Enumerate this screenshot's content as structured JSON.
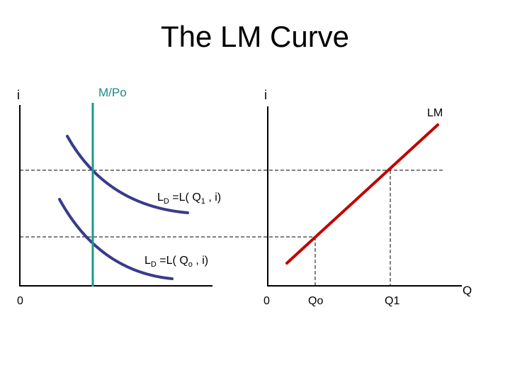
{
  "title": "The LM Curve",
  "left_panel": {
    "y_axis_label": "i",
    "origin_label": "0",
    "money_supply_label": "M/Po",
    "demand_upper": {
      "prefix": "L",
      "sub": "D",
      "mid": " =L( Q",
      "qsub": "1",
      "suffix": " , i)"
    },
    "demand_lower": {
      "prefix": "L",
      "sub": "D",
      "mid": " =L( Q",
      "qsub": "o",
      "suffix": " , i)"
    }
  },
  "right_panel": {
    "y_axis_label": "i",
    "origin_label": "0",
    "x_axis_label": "Q",
    "curve_label": "LM",
    "tick_labels": [
      "Qo",
      "Q1"
    ]
  },
  "colors": {
    "demand_curve": "#3a3a8c",
    "money_supply_line": "#1a9a8a",
    "money_supply_text": "#1a8a8a",
    "lm_line": "#c00000",
    "axis": "#000000"
  }
}
